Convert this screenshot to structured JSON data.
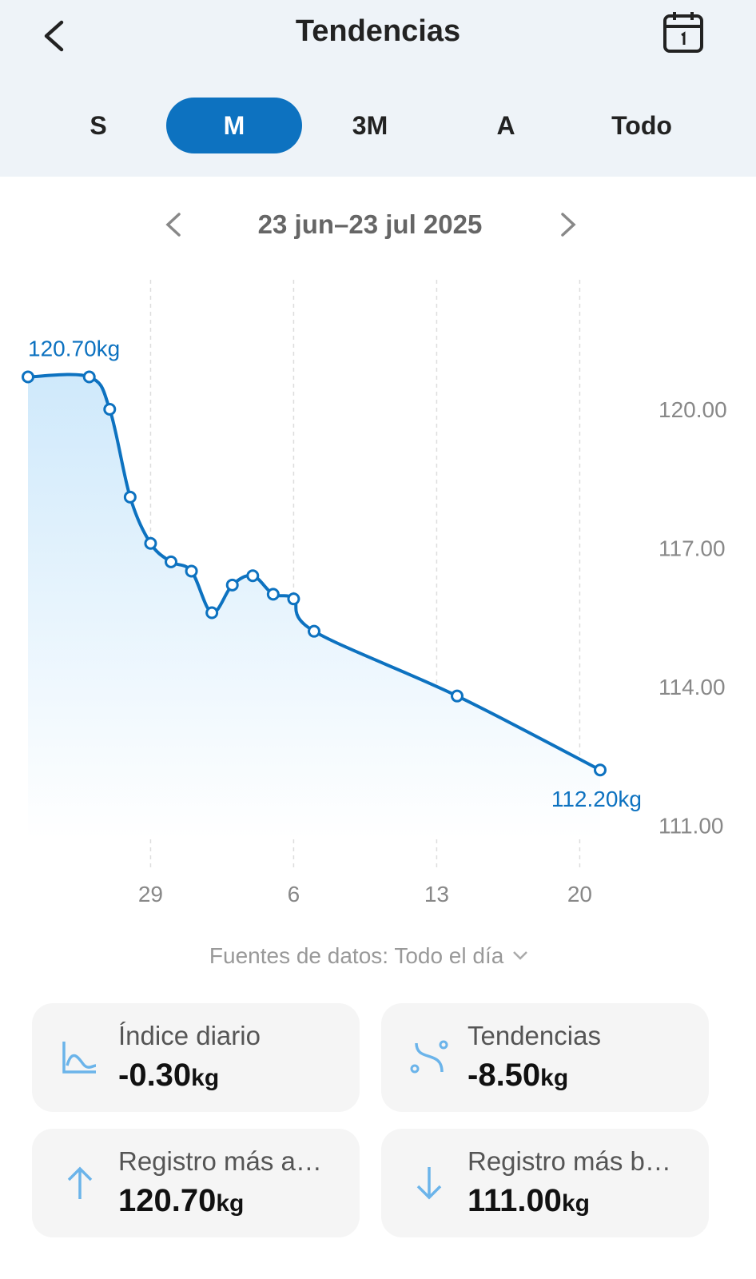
{
  "header": {
    "title": "Tendencias"
  },
  "tabs": [
    "S",
    "M",
    "3M",
    "A",
    "Todo"
  ],
  "selected_tab": "M",
  "date_range": "23 jun–23 jul 2025",
  "chart_data": {
    "type": "line",
    "color": "#0d72c0",
    "x": [
      0,
      3,
      4,
      5,
      6,
      7,
      8,
      9,
      10,
      11,
      12,
      13,
      14,
      21,
      28
    ],
    "values": [
      120.7,
      120.7,
      120.0,
      118.1,
      117.1,
      116.7,
      116.5,
      115.6,
      116.2,
      116.4,
      116.0,
      115.9,
      115.2,
      113.8,
      112.2
    ],
    "value_labels": [
      "120.70kg",
      null,
      null,
      null,
      null,
      null,
      null,
      null,
      null,
      null,
      null,
      null,
      null,
      null,
      "112.20kg"
    ],
    "xlim": [
      0,
      28
    ],
    "xticks": [
      {
        "value": 6,
        "label": "29"
      },
      {
        "value": 13,
        "label": "6"
      },
      {
        "value": 20,
        "label": "13"
      },
      {
        "value": 27,
        "label": "20"
      }
    ],
    "ylim": [
      110.7,
      122.8
    ],
    "yticks": [
      {
        "value": 120,
        "label": "120.00"
      },
      {
        "value": 117,
        "label": "117.00"
      },
      {
        "value": 114,
        "label": "114.00"
      },
      {
        "value": 111,
        "label": "111.00"
      }
    ],
    "grid": true
  },
  "data_source": "Fuentes de datos: Todo el día",
  "cards": [
    {
      "label": "Índice diario",
      "value": "-0.30",
      "unit": "kg"
    },
    {
      "label": "Tendencias",
      "value": "-8.50",
      "unit": "kg"
    },
    {
      "label": "Registro más a…",
      "value": "120.70",
      "unit": "kg"
    },
    {
      "label": "Registro más b…",
      "value": "111.00",
      "unit": "kg"
    }
  ]
}
